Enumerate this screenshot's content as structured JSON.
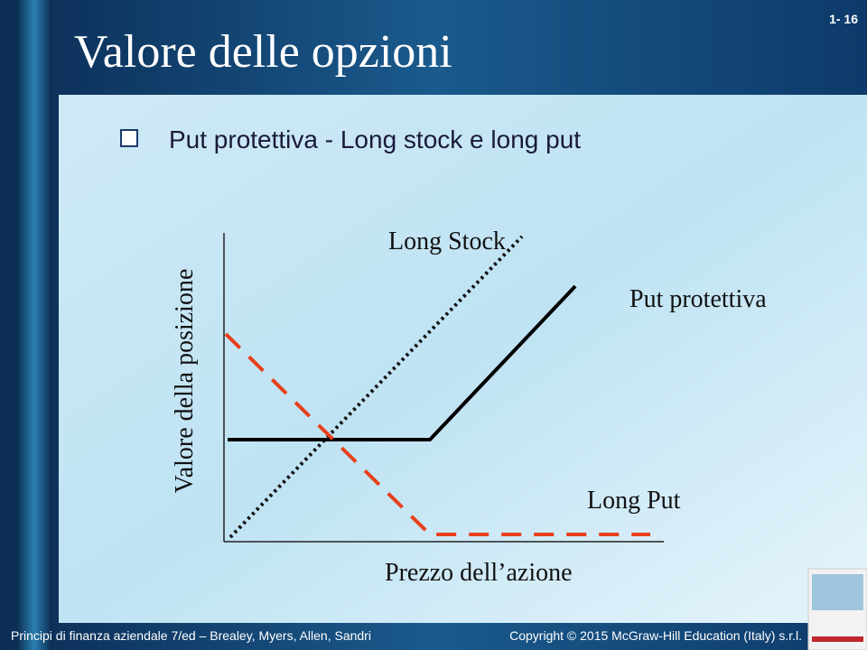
{
  "slide": {
    "title": "Valore delle opzioni",
    "slide_number": "1- 16",
    "bullet": "Put protettiva - Long stock e long put",
    "diagram": {
      "y_axis_label": "Valore della posizione",
      "x_axis_label": "Prezzo dell’azione",
      "labels": [
        "Long Stock",
        "Put protettiva",
        "Long Put"
      ]
    },
    "footer": {
      "left": "Principi di finanza aziendale 7/ed – Brealey, Myers, Allen, Sandri",
      "right": "Copyright © 2015 McGraw-Hill Education (Italy) s.r.l."
    }
  }
}
